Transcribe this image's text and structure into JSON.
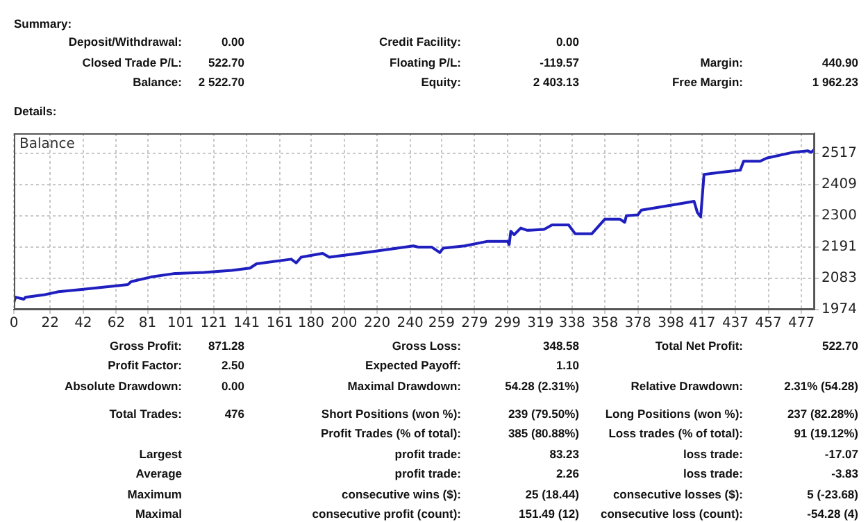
{
  "chart_data": {
    "type": "line",
    "title": "Balance",
    "x": [
      0,
      1,
      6,
      7,
      18,
      27,
      41,
      61,
      69,
      71,
      83,
      97,
      115,
      132,
      143,
      147,
      168,
      171,
      174,
      187,
      191,
      217,
      242,
      245,
      253,
      258,
      260,
      273,
      287,
      299,
      300,
      301,
      303,
      307,
      311,
      321,
      326,
      336,
      340,
      350,
      358,
      367,
      370,
      371,
      378,
      380,
      404,
      412,
      414,
      416,
      418,
      429,
      440,
      442,
      452,
      456,
      472,
      481,
      483,
      485
    ],
    "series": [
      {
        "color": "#1f1fbf",
        "values": [
          1999,
          2017,
          2010,
          2017,
          2025,
          2036,
          2044,
          2056,
          2061,
          2071,
          2087,
          2099,
          2103,
          2110,
          2118,
          2133,
          2149,
          2136,
          2156,
          2169,
          2156,
          2175,
          2195,
          2191,
          2191,
          2172,
          2187,
          2195,
          2211,
          2211,
          2200,
          2246,
          2234,
          2257,
          2249,
          2252,
          2268,
          2268,
          2237,
          2237,
          2288,
          2288,
          2277,
          2300,
          2303,
          2319,
          2342,
          2350,
          2311,
          2296,
          2443,
          2451,
          2458,
          2489,
          2489,
          2500,
          2520,
          2525,
          2520,
          2531
        ]
      }
    ],
    "xlim": [
      0,
      485
    ],
    "xticks": [
      0,
      22,
      42,
      62,
      81,
      101,
      121,
      141,
      161,
      180,
      200,
      220,
      240,
      259,
      279,
      299,
      319,
      338,
      358,
      378,
      398,
      417,
      437,
      457,
      477
    ],
    "ylim": [
      1974,
      2586
    ],
    "yticks": [
      1974,
      {
        "value": 2082.6,
        "label": "2083"
      },
      {
        "value": 2191.2,
        "label": "2191"
      },
      {
        "value": 2299.8,
        "label": "2300"
      },
      {
        "value": 2408.6,
        "label": "2409"
      },
      2517
    ],
    "grid": true,
    "legend": false,
    "marker": "none",
    "line_style": "solid",
    "annotations": [
      "Summary:",
      "Deposit/Withdrawal:",
      "0.00",
      "Credit Facility:",
      "0.00",
      "Closed Trade P/L:",
      "522.70",
      "Floating P/L:",
      "-119.57",
      "Margin:",
      "440.90",
      "Balance:",
      "2 522.70",
      "Equity:",
      "2 403.13",
      "Free Margin:",
      "1 962.23",
      "Details:",
      "Gross Profit:",
      "871.28",
      "Gross Loss:",
      "348.58",
      "Total Net Profit:",
      "522.70",
      "Profit Factor:",
      "2.50",
      "Expected Payoff:",
      "1.10",
      "Absolute Drawdown:",
      "0.00",
      "Maximal Drawdown:",
      "54.28 (2.31%)",
      "Relative Drawdown:",
      "2.31% (54.28)",
      "Total Trades:",
      "476",
      "Short Positions (won %):",
      "239 (79.50%)",
      "Long Positions (won %):",
      "237 (82.28%)",
      "Profit Trades (% of total):",
      "385 (80.88%)",
      "Loss trades (% of total):",
      "91 (19.12%)",
      "Largest",
      "profit trade:",
      "83.23",
      "loss trade:",
      "-17.07",
      "Average",
      "profit trade:",
      "2.26",
      "loss trade:",
      "-3.83",
      "Maximum",
      "consecutive wins ($):",
      "25 (18.44)",
      "consecutive losses ($):",
      "5 (-23.68)",
      "Maximal",
      "consecutive profit (count):",
      "151.49 (12)",
      "consecutive loss (count):",
      "-54.28 (4)"
    ]
  }
}
